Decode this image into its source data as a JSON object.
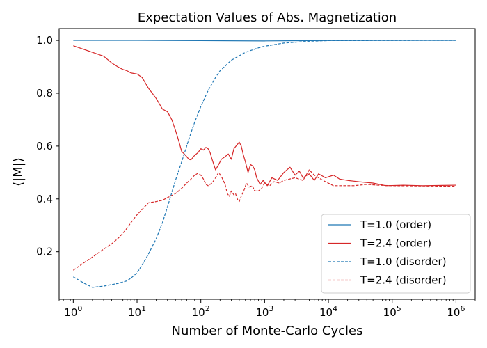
{
  "chart_data": {
    "type": "line",
    "title": "Expectation Values of Abs. Magnetization",
    "xlabel": "Number of Monte-Carlo Cycles",
    "ylabel": "⟨|M|⟩",
    "xscale": "log",
    "xlim": [
      0.6,
      2000000
    ],
    "ylim": [
      0.02,
      1.045
    ],
    "grid": false,
    "legend_position": "lower-right",
    "x_ticks": [
      {
        "value": 1,
        "base": "10",
        "exp": "0"
      },
      {
        "value": 10,
        "base": "10",
        "exp": "1"
      },
      {
        "value": 100,
        "base": "10",
        "exp": "2"
      },
      {
        "value": 1000,
        "base": "10",
        "exp": "3"
      },
      {
        "value": 10000,
        "base": "10",
        "exp": "4"
      },
      {
        "value": 100000,
        "base": "10",
        "exp": "5"
      },
      {
        "value": 1000000,
        "base": "10",
        "exp": "6"
      }
    ],
    "y_ticks": [
      {
        "value": 0.2,
        "label": "0.2"
      },
      {
        "value": 0.4,
        "label": "0.4"
      },
      {
        "value": 0.6,
        "label": "0.6"
      },
      {
        "value": 0.8,
        "label": "0.8"
      },
      {
        "value": 1.0,
        "label": "1.0"
      }
    ],
    "series": [
      {
        "name": "T=1.0 (order)",
        "color": "#1f77b4",
        "style": "solid",
        "points": [
          [
            1,
            1.0
          ],
          [
            10,
            1.0
          ],
          [
            100,
            0.999
          ],
          [
            1000,
            0.998
          ],
          [
            10000,
            0.9995
          ],
          [
            100000,
            1.0
          ],
          [
            1000000,
            1.0
          ]
        ]
      },
      {
        "name": "T=2.4 (order)",
        "color": "#d62728",
        "style": "solid",
        "points": [
          [
            1,
            0.98
          ],
          [
            2,
            0.955
          ],
          [
            3,
            0.94
          ],
          [
            4,
            0.915
          ],
          [
            5,
            0.9
          ],
          [
            6,
            0.89
          ],
          [
            7,
            0.885
          ],
          [
            8,
            0.877
          ],
          [
            10,
            0.873
          ],
          [
            12,
            0.86
          ],
          [
            15,
            0.82
          ],
          [
            20,
            0.78
          ],
          [
            25,
            0.74
          ],
          [
            30,
            0.73
          ],
          [
            35,
            0.7
          ],
          [
            40,
            0.66
          ],
          [
            45,
            0.62
          ],
          [
            50,
            0.58
          ],
          [
            55,
            0.57
          ],
          [
            60,
            0.56
          ],
          [
            65,
            0.55
          ],
          [
            70,
            0.548
          ],
          [
            80,
            0.565
          ],
          [
            90,
            0.575
          ],
          [
            100,
            0.59
          ],
          [
            110,
            0.585
          ],
          [
            120,
            0.595
          ],
          [
            130,
            0.59
          ],
          [
            140,
            0.575
          ],
          [
            150,
            0.55
          ],
          [
            170,
            0.51
          ],
          [
            190,
            0.53
          ],
          [
            210,
            0.55
          ],
          [
            240,
            0.56
          ],
          [
            270,
            0.57
          ],
          [
            300,
            0.55
          ],
          [
            330,
            0.59
          ],
          [
            370,
            0.605
          ],
          [
            400,
            0.615
          ],
          [
            430,
            0.6
          ],
          [
            460,
            0.57
          ],
          [
            500,
            0.54
          ],
          [
            550,
            0.5
          ],
          [
            600,
            0.53
          ],
          [
            650,
            0.525
          ],
          [
            700,
            0.51
          ],
          [
            750,
            0.48
          ],
          [
            850,
            0.455
          ],
          [
            950,
            0.47
          ],
          [
            1100,
            0.45
          ],
          [
            1300,
            0.48
          ],
          [
            1600,
            0.47
          ],
          [
            2000,
            0.5
          ],
          [
            2500,
            0.52
          ],
          [
            3000,
            0.49
          ],
          [
            3500,
            0.505
          ],
          [
            4000,
            0.48
          ],
          [
            5000,
            0.495
          ],
          [
            6000,
            0.47
          ],
          [
            7000,
            0.495
          ],
          [
            9000,
            0.48
          ],
          [
            12000,
            0.49
          ],
          [
            15000,
            0.475
          ],
          [
            20000,
            0.47
          ],
          [
            30000,
            0.465
          ],
          [
            50000,
            0.46
          ],
          [
            80000,
            0.45
          ],
          [
            150000,
            0.452
          ],
          [
            300000,
            0.45
          ],
          [
            1000000,
            0.452
          ]
        ]
      },
      {
        "name": "T=1.0 (disorder)",
        "color": "#1f77b4",
        "style": "dashed",
        "points": [
          [
            1,
            0.105
          ],
          [
            1.5,
            0.08
          ],
          [
            2,
            0.065
          ],
          [
            3,
            0.07
          ],
          [
            5,
            0.08
          ],
          [
            7,
            0.09
          ],
          [
            8,
            0.1
          ],
          [
            10,
            0.12
          ],
          [
            12,
            0.15
          ],
          [
            15,
            0.19
          ],
          [
            20,
            0.25
          ],
          [
            25,
            0.31
          ],
          [
            30,
            0.37
          ],
          [
            40,
            0.47
          ],
          [
            50,
            0.54
          ],
          [
            60,
            0.6
          ],
          [
            70,
            0.65
          ],
          [
            80,
            0.69
          ],
          [
            100,
            0.75
          ],
          [
            130,
            0.81
          ],
          [
            170,
            0.86
          ],
          [
            200,
            0.885
          ],
          [
            300,
            0.925
          ],
          [
            500,
            0.955
          ],
          [
            800,
            0.972
          ],
          [
            1000,
            0.978
          ],
          [
            2000,
            0.99
          ],
          [
            5000,
            0.997
          ],
          [
            10000,
            0.999
          ],
          [
            1000000,
            1.0
          ]
        ]
      },
      {
        "name": "T=2.4 (disorder)",
        "color": "#d62728",
        "style": "dashed",
        "points": [
          [
            1,
            0.13
          ],
          [
            1.5,
            0.16
          ],
          [
            2,
            0.18
          ],
          [
            3,
            0.21
          ],
          [
            4,
            0.23
          ],
          [
            5,
            0.25
          ],
          [
            6,
            0.27
          ],
          [
            7,
            0.29
          ],
          [
            8,
            0.31
          ],
          [
            10,
            0.34
          ],
          [
            12,
            0.36
          ],
          [
            15,
            0.385
          ],
          [
            20,
            0.39
          ],
          [
            25,
            0.395
          ],
          [
            30,
            0.405
          ],
          [
            40,
            0.42
          ],
          [
            50,
            0.44
          ],
          [
            60,
            0.46
          ],
          [
            70,
            0.475
          ],
          [
            80,
            0.49
          ],
          [
            90,
            0.497
          ],
          [
            100,
            0.49
          ],
          [
            110,
            0.475
          ],
          [
            120,
            0.455
          ],
          [
            130,
            0.45
          ],
          [
            150,
            0.46
          ],
          [
            170,
            0.48
          ],
          [
            190,
            0.5
          ],
          [
            210,
            0.485
          ],
          [
            240,
            0.455
          ],
          [
            260,
            0.42
          ],
          [
            280,
            0.41
          ],
          [
            300,
            0.43
          ],
          [
            330,
            0.415
          ],
          [
            350,
            0.42
          ],
          [
            380,
            0.395
          ],
          [
            400,
            0.39
          ],
          [
            430,
            0.41
          ],
          [
            470,
            0.43
          ],
          [
            520,
            0.46
          ],
          [
            570,
            0.445
          ],
          [
            640,
            0.45
          ],
          [
            700,
            0.43
          ],
          [
            800,
            0.43
          ],
          [
            900,
            0.44
          ],
          [
            1000,
            0.46
          ],
          [
            1200,
            0.45
          ],
          [
            1400,
            0.465
          ],
          [
            1700,
            0.46
          ],
          [
            2000,
            0.47
          ],
          [
            3000,
            0.48
          ],
          [
            4000,
            0.47
          ],
          [
            5000,
            0.51
          ],
          [
            6000,
            0.49
          ],
          [
            7000,
            0.48
          ],
          [
            9000,
            0.465
          ],
          [
            12000,
            0.45
          ],
          [
            15000,
            0.45
          ],
          [
            25000,
            0.45
          ],
          [
            40000,
            0.455
          ],
          [
            60000,
            0.452
          ],
          [
            100000,
            0.45
          ],
          [
            1000000,
            0.448
          ]
        ]
      }
    ]
  }
}
